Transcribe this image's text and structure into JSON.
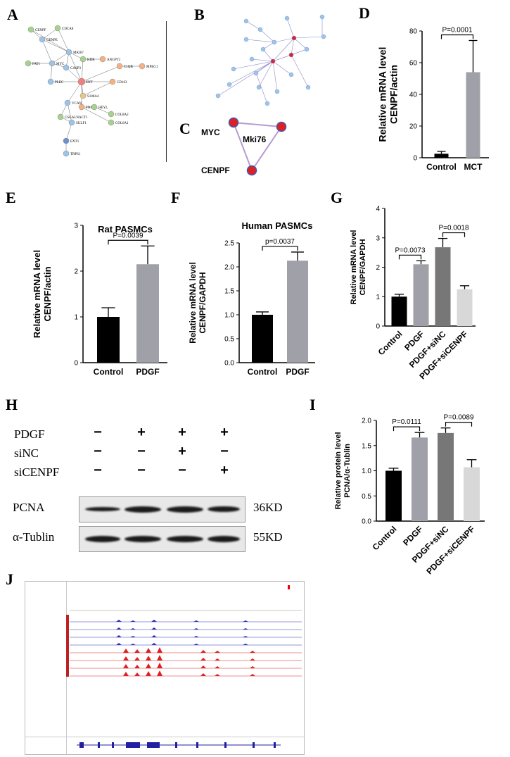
{
  "panels": {
    "A": "A",
    "B": "B",
    "C": "C",
    "D": "D",
    "E": "E",
    "F": "F",
    "G": "G",
    "H": "H",
    "I": "I",
    "J": "J"
  },
  "panel_c": {
    "nodes": [
      "MYC",
      "Mki76",
      "CENPF"
    ]
  },
  "panel_a": {
    "nodes": [
      "CENPF",
      "CDCA8",
      "CENPE",
      "MKI67",
      "KDR",
      "ANGPT2",
      "FAT1",
      "MYC",
      "CASP3",
      "C1QB",
      "MPEG1",
      "PLEC",
      "ENT",
      "CD163",
      "S100A4",
      "VCAN",
      "FN1",
      "HEYL",
      "COL8A2",
      "CSGALNACT1",
      "SULF1",
      "COL6A1",
      "EXT1",
      "TRPS1"
    ]
  },
  "panel_h": {
    "rows": [
      {
        "label": "PDGF",
        "signs": [
          "−",
          "+",
          "+",
          "+"
        ]
      },
      {
        "label": "siNC",
        "signs": [
          "−",
          "−",
          "+",
          "−"
        ]
      },
      {
        "label": "siCENPF",
        "signs": [
          "−",
          "−",
          "−",
          "+"
        ]
      }
    ],
    "blots": [
      {
        "label": "PCNA",
        "size": "36KD"
      },
      {
        "label": "α-Tublin",
        "size": "55KD"
      }
    ]
  },
  "chart_data": [
    {
      "id": "D",
      "type": "bar",
      "title": "",
      "ylabel": "Relative  mRNA level CENPF/actin",
      "categories": [
        "Control",
        "MCT"
      ],
      "values": [
        2.5,
        54
      ],
      "errors": [
        1.5,
        20
      ],
      "colors": [
        "#000000",
        "#a0a0a8"
      ],
      "ylim": [
        0,
        80
      ],
      "yticks": [
        "0",
        "20",
        "40",
        "60",
        "80"
      ],
      "comparisons": [
        {
          "from": 0,
          "to": 1,
          "label": "P=0.0001"
        }
      ]
    },
    {
      "id": "E",
      "type": "bar",
      "title": "Rat PASMCs",
      "ylabel": "Relative  mRNA  level CENPF/actin",
      "categories": [
        "Control",
        "PDGF"
      ],
      "values": [
        1.0,
        2.15
      ],
      "errors": [
        0.2,
        0.4
      ],
      "colors": [
        "#000000",
        "#a0a0a8"
      ],
      "ylim": [
        0,
        3
      ],
      "yticks": [
        "0",
        "1",
        "2",
        "3"
      ],
      "comparisons": [
        {
          "from": 0,
          "to": 1,
          "label": "P=0.0039"
        }
      ]
    },
    {
      "id": "F",
      "type": "bar",
      "title": "Human PASMCs",
      "ylabel": "Relative mRNA level CENPF/GAPDH",
      "categories": [
        "Control",
        "PDGF"
      ],
      "values": [
        1.0,
        2.13
      ],
      "errors": [
        0.06,
        0.18
      ],
      "colors": [
        "#000000",
        "#a0a0a8"
      ],
      "ylim": [
        0,
        2.5
      ],
      "yticks": [
        "0.0",
        "0.5",
        "1.0",
        "1.5",
        "2.0",
        "2.5"
      ],
      "comparisons": [
        {
          "from": 0,
          "to": 1,
          "label": "p=0.0037"
        }
      ]
    },
    {
      "id": "G",
      "type": "bar",
      "title": "",
      "ylabel": "Relative mRNA level CENPF/GAPDH",
      "categories": [
        "Control",
        "PDGF",
        "PDGF+siNC",
        "PDGF+siCENPF"
      ],
      "values": [
        1.0,
        2.1,
        2.68,
        1.25
      ],
      "errors": [
        0.08,
        0.12,
        0.3,
        0.12
      ],
      "colors": [
        "#000000",
        "#a0a0a8",
        "#777777",
        "#d8d8d8"
      ],
      "ylim": [
        0,
        4
      ],
      "yticks": [
        "0",
        "1",
        "2",
        "3",
        "4"
      ],
      "comparisons": [
        {
          "from": 0,
          "to": 1,
          "label": "P=0.0073"
        },
        {
          "from": 2,
          "to": 3,
          "label": "P=0.0018"
        }
      ]
    },
    {
      "id": "I",
      "type": "bar",
      "title": "",
      "ylabel": "Relative protein level PCNA/α-Tublin",
      "categories": [
        "Control",
        "PDGF",
        "PDGF+siNC",
        "PDGF+siCENPF"
      ],
      "values": [
        1.0,
        1.66,
        1.75,
        1.07
      ],
      "errors": [
        0.05,
        0.1,
        0.1,
        0.15
      ],
      "colors": [
        "#000000",
        "#a0a0a8",
        "#777777",
        "#d8d8d8"
      ],
      "ylim": [
        0,
        2
      ],
      "yticks": [
        "0.0",
        "0.5",
        "1.0",
        "1.5",
        "2.0"
      ],
      "comparisons": [
        {
          "from": 0,
          "to": 1,
          "label": "P=0.0111"
        },
        {
          "from": 2,
          "to": 3,
          "label": "P=0.0089"
        }
      ]
    }
  ]
}
